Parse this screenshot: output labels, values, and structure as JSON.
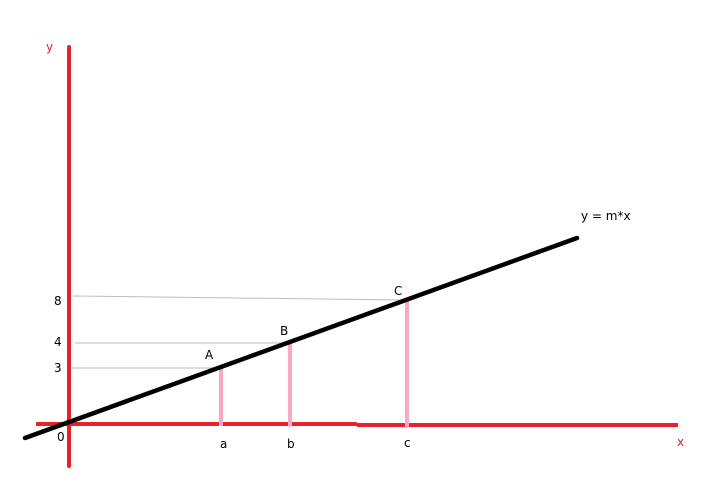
{
  "axes": {
    "x_label": "x",
    "y_label": "y",
    "origin_label": "0",
    "color": "#e8212b"
  },
  "line": {
    "label": "y = m*x",
    "color": "#000000"
  },
  "points": [
    {
      "name": "A",
      "x_label": "a",
      "y_label": "3"
    },
    {
      "name": "B",
      "x_label": "b",
      "y_label": "4"
    },
    {
      "name": "C",
      "x_label": "c",
      "y_label": "8"
    }
  ],
  "colors": {
    "projection": "#f7a8c4",
    "guide": "#bdbdbd"
  }
}
